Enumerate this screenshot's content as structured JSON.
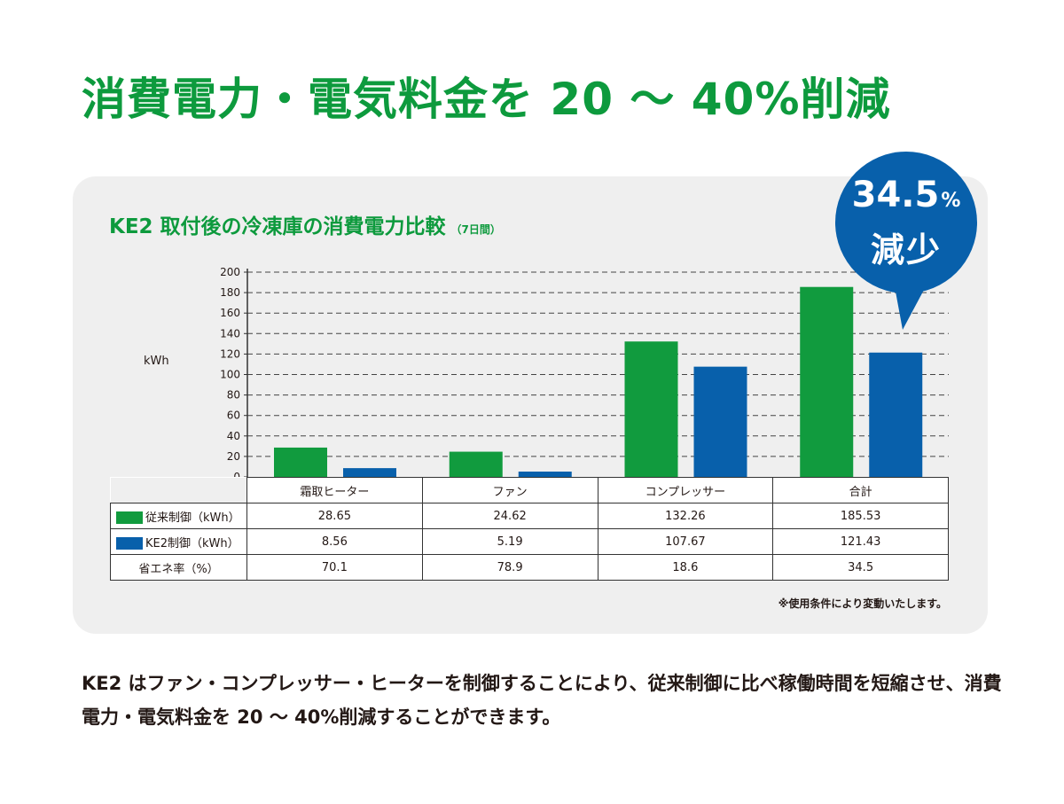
{
  "headline": "消費電力・電気料金を 20 〜 40%削減",
  "chart_title": "KE2 取付後の冷凍庫の消費電力比較",
  "chart_subtitle": "（7日間）",
  "badge": {
    "value": "34.5",
    "unit": "%",
    "text": "減少",
    "color": "#0860ab"
  },
  "table": {
    "rows": [
      {
        "label": "従来制御（kWh）",
        "color": "#119b3e",
        "values": [
          "28.65",
          "24.62",
          "132.26",
          "185.53"
        ]
      },
      {
        "label": "KE2制御（kWh）",
        "color": "#0860ab",
        "values": [
          "8.56",
          "5.19",
          "107.67",
          "121.43"
        ]
      },
      {
        "label": "省エネ率（%）",
        "values": [
          "70.1",
          "78.9",
          "18.6",
          "34.5"
        ]
      }
    ]
  },
  "note": "※使用条件により変動いたします。",
  "description": "KE2 はファン・コンプレッサー・ヒーターを制御することにより、従来制御に比べ稼働時間を短縮させ、消費電力・電気料金を 20 〜 40%削減することができます。",
  "chart_data": {
    "type": "bar",
    "title": "KE2 取付後の冷凍庫の消費電力比較",
    "subtitle": "（7日間）",
    "ylabel": "kWh",
    "ylim": [
      0,
      200
    ],
    "yticks": [
      0,
      20,
      40,
      60,
      80,
      100,
      120,
      140,
      160,
      180,
      200
    ],
    "grid": true,
    "categories": [
      "霜取ヒーター",
      "ファン",
      "コンプレッサー",
      "合計"
    ],
    "series": [
      {
        "name": "従来制御（kWh）",
        "color": "#119b3e",
        "values": [
          28.65,
          24.62,
          132.26,
          185.53
        ]
      },
      {
        "name": "KE2制御（kWh）",
        "color": "#0860ab",
        "values": [
          8.56,
          5.19,
          107.67,
          121.43
        ]
      }
    ]
  }
}
